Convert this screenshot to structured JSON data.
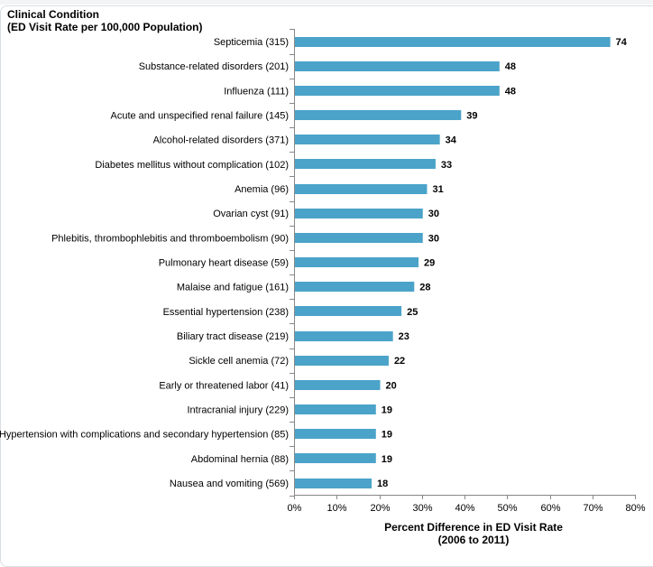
{
  "chart_data": {
    "type": "bar",
    "orientation": "horizontal",
    "ylabel": "Clinical Condition\n(ED Visit Rate per 100,000 Population)",
    "ylabel_lines": [
      "Clinical Condition",
      "(ED Visit Rate per 100,000 Population)"
    ],
    "xlabel_lines": [
      "Percent Difference in ED Visit Rate",
      "(2006 to 2011)"
    ],
    "xlim": [
      0,
      80
    ],
    "xticks": [
      "0%",
      "10%",
      "20%",
      "30%",
      "40%",
      "50%",
      "60%",
      "70%",
      "80%"
    ],
    "grid": false,
    "bar_color": "#4ba3c9",
    "categories": [
      "Septicemia (315)",
      "Substance-related disorders (201)",
      "Influenza (111)",
      "Acute and unspecified renal failure (145)",
      "Alcohol-related disorders (371)",
      "Diabetes mellitus without complication (102)",
      "Anemia (96)",
      "Ovarian cyst (91)",
      "Phlebitis, thrombophlebitis and thromboembolism (90)",
      "Pulmonary heart disease (59)",
      "Malaise and fatigue (161)",
      "Essential hypertension (238)",
      "Biliary tract disease (219)",
      "Sickle cell anemia (72)",
      "Early or threatened labor (41)",
      "Intracranial injury (229)",
      "Hypertension with complications and secondary hypertension (85)",
      "Abdominal hernia (88)",
      "Nausea and vomiting (569)"
    ],
    "values": [
      74,
      48,
      48,
      39,
      34,
      33,
      31,
      30,
      30,
      29,
      28,
      25,
      23,
      22,
      20,
      19,
      19,
      19,
      18
    ]
  }
}
